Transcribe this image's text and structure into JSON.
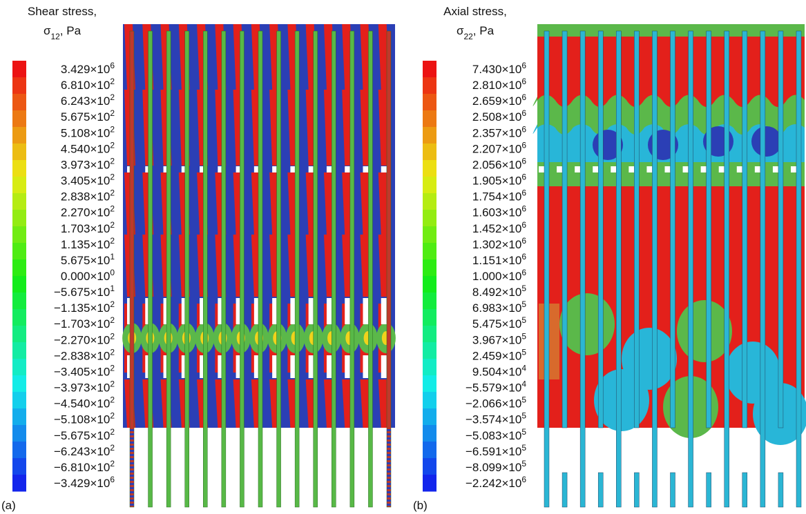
{
  "panels": [
    {
      "label": "(a)",
      "legend": {
        "title": "Shear stress,",
        "symbol": "σ",
        "subscript": "12",
        "unit": ", Pa",
        "ticks": [
          {
            "coefficient": "3.429×10",
            "exponent": "6"
          },
          {
            "coefficient": "6.810×10",
            "exponent": "2"
          },
          {
            "coefficient": "6.243×10",
            "exponent": "2"
          },
          {
            "coefficient": "5.675×10",
            "exponent": "2"
          },
          {
            "coefficient": "5.108×10",
            "exponent": "2"
          },
          {
            "coefficient": "4.540×10",
            "exponent": "2"
          },
          {
            "coefficient": "3.973×10",
            "exponent": "2"
          },
          {
            "coefficient": "3.405×10",
            "exponent": "2"
          },
          {
            "coefficient": "2.838×10",
            "exponent": "2"
          },
          {
            "coefficient": "2.270×10",
            "exponent": "2"
          },
          {
            "coefficient": "1.703×10",
            "exponent": "2"
          },
          {
            "coefficient": "1.135×10",
            "exponent": "2"
          },
          {
            "coefficient": "5.675×10",
            "exponent": "1"
          },
          {
            "coefficient": "0.000×10",
            "exponent": "0"
          },
          {
            "coefficient": "−5.675×10",
            "exponent": "1"
          },
          {
            "coefficient": "−1.135×10",
            "exponent": "2"
          },
          {
            "coefficient": "−1.703×10",
            "exponent": "2"
          },
          {
            "coefficient": "−2.270×10",
            "exponent": "2"
          },
          {
            "coefficient": "−2.838×10",
            "exponent": "2"
          },
          {
            "coefficient": "−3.405×10",
            "exponent": "2"
          },
          {
            "coefficient": "−3.973×10",
            "exponent": "2"
          },
          {
            "coefficient": "−4.540×10",
            "exponent": "2"
          },
          {
            "coefficient": "−5.108×10",
            "exponent": "2"
          },
          {
            "coefficient": "−5.675×10",
            "exponent": "2"
          },
          {
            "coefficient": "−6.243×10",
            "exponent": "2"
          },
          {
            "coefficient": "−6.810×10",
            "exponent": "2"
          },
          {
            "coefficient": "−3.429×10",
            "exponent": "6"
          }
        ]
      }
    },
    {
      "label": "(b)",
      "legend": {
        "title": "Axial stress,",
        "symbol": "σ",
        "subscript": "22",
        "unit": ", Pa",
        "ticks": [
          {
            "coefficient": "7.430×10",
            "exponent": "6"
          },
          {
            "coefficient": "2.810×10",
            "exponent": "6"
          },
          {
            "coefficient": "2.659×10",
            "exponent": "6"
          },
          {
            "coefficient": "2.508×10",
            "exponent": "6"
          },
          {
            "coefficient": "2.357×10",
            "exponent": "6"
          },
          {
            "coefficient": "2.207×10",
            "exponent": "6"
          },
          {
            "coefficient": "2.056×10",
            "exponent": "6"
          },
          {
            "coefficient": "1.905×10",
            "exponent": "6"
          },
          {
            "coefficient": "1.754×10",
            "exponent": "6"
          },
          {
            "coefficient": "1.603×10",
            "exponent": "6"
          },
          {
            "coefficient": "1.452×10",
            "exponent": "6"
          },
          {
            "coefficient": "1.302×10",
            "exponent": "6"
          },
          {
            "coefficient": "1.151×10",
            "exponent": "6"
          },
          {
            "coefficient": "1.000×10",
            "exponent": "6"
          },
          {
            "coefficient": "8.492×10",
            "exponent": "5"
          },
          {
            "coefficient": "6.983×10",
            "exponent": "5"
          },
          {
            "coefficient": "5.475×10",
            "exponent": "5"
          },
          {
            "coefficient": "3.967×10",
            "exponent": "5"
          },
          {
            "coefficient": "2.459×10",
            "exponent": "5"
          },
          {
            "coefficient": "9.504×10",
            "exponent": "4"
          },
          {
            "coefficient": "−5.579×10",
            "exponent": "4"
          },
          {
            "coefficient": "−2.066×10",
            "exponent": "5"
          },
          {
            "coefficient": "−3.574×10",
            "exponent": "5"
          },
          {
            "coefficient": "−5.083×10",
            "exponent": "5"
          },
          {
            "coefficient": "−6.591×10",
            "exponent": "5"
          },
          {
            "coefficient": "−8.099×10",
            "exponent": "5"
          },
          {
            "coefficient": "−2.242×10",
            "exponent": "6"
          }
        ]
      }
    }
  ]
}
